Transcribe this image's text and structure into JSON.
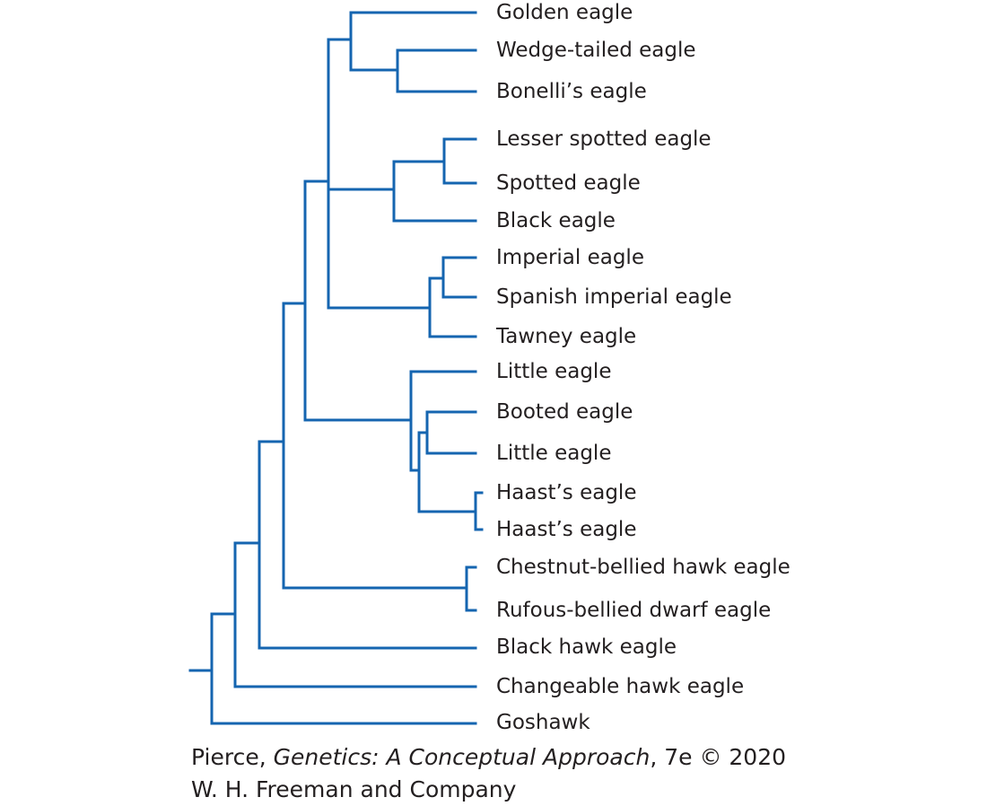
{
  "tree": {
    "line_color": "#1565b0",
    "taxa": [
      "Golden eagle",
      "Wedge-tailed eagle",
      "Bonelli’s eagle",
      "Lesser spotted eagle",
      "Spotted eagle",
      "Black eagle",
      "Imperial eagle",
      "Spanish imperial eagle",
      "Tawney eagle",
      "Little eagle",
      "Booted eagle",
      "Little eagle",
      "Haast’s eagle",
      "Haast’s eagle",
      "Chestnut-bellied hawk eagle",
      "Rufous-bellied dwarf eagle",
      "Black hawk eagle",
      "Changeable hawk eagle",
      "Goshawk"
    ]
  },
  "credit": {
    "author": "Pierce, ",
    "book_title": "Genetics: A Conceptual Approach",
    "edition": ", 7e © 2020",
    "publisher": "W. H. Freeman and Company"
  }
}
